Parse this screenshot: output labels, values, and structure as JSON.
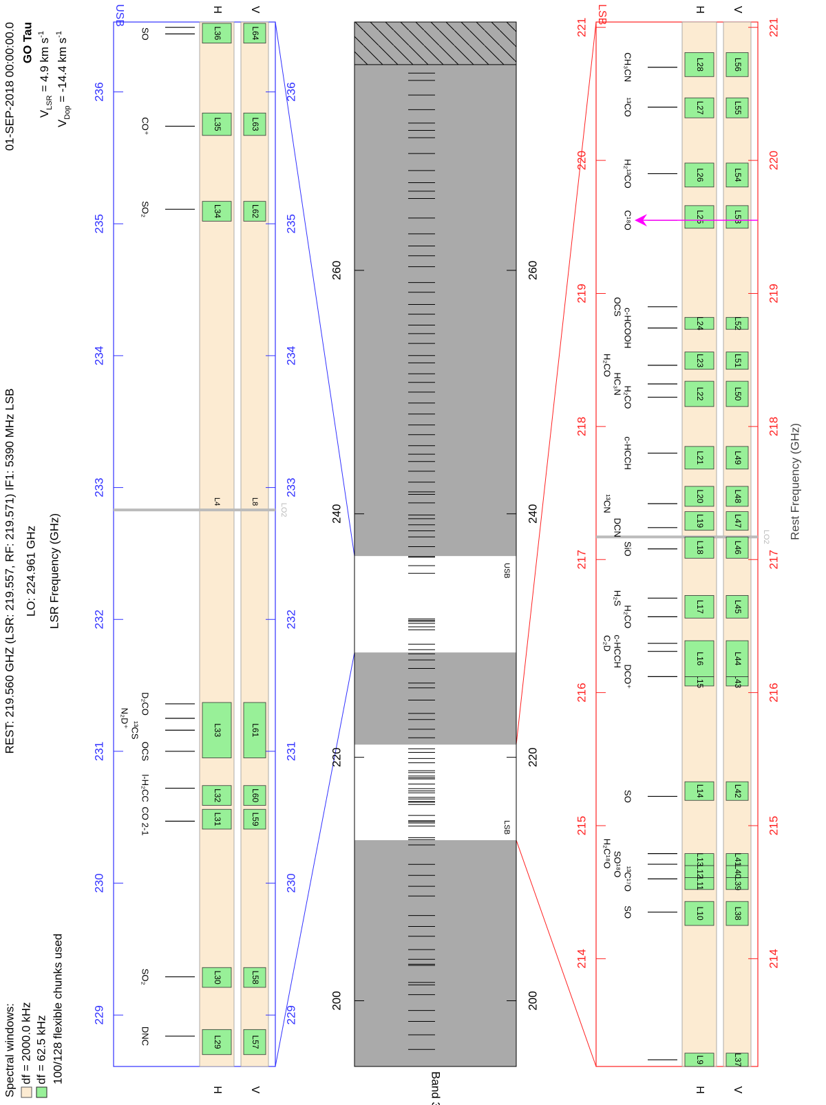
{
  "header": {
    "rest": "REST:  219.560 GHZ (LSR:  219.557, RF:  219.571) IF1: 5390 MHz LSB",
    "lo": "LO: 224.961 GHz",
    "date": "01-SEP-2018 00:00:00.0",
    "source": "GO Tau",
    "vlsr": {
      "symbol": "V",
      "sub": "LSR",
      "text": " = 4.9 km s",
      "sup": "-1"
    },
    "vdop": {
      "symbol": "V",
      "sub": "Dop",
      "text": " = -14.4 km s",
      "sup": "-1"
    }
  },
  "legend": {
    "title": "Spectral windows:",
    "wide": "df = 2000.0 kHz",
    "narrow": "df = 62.5 kHz",
    "chunks": "100/128 flexible chunks used"
  },
  "chart_data": [
    {
      "type": "spectrum",
      "sideband": "USB",
      "color": "#3030ff",
      "xlabel": "LSR Frequency (GHz)",
      "xlim": [
        228.61,
        236.53
      ],
      "xticks": [
        229,
        230,
        231,
        232,
        233,
        234,
        235,
        236
      ],
      "lo2": 232.83,
      "lo2_label": "LO2",
      "row_labels": [
        "H",
        "V"
      ],
      "wide_windows": [
        "L4",
        "L8"
      ],
      "lines": [
        {
          "label": "DNC",
          "freq": 228.84
        },
        {
          "label": "SO₂",
          "freq": 229.29
        },
        {
          "label": "CO 2-1",
          "freq": 230.47
        },
        {
          "label": "l-H₂CC",
          "freq": 230.72
        },
        {
          "label": "OCS",
          "freq": 231.0
        },
        {
          "label": "¹³CS",
          "freq": 231.16
        },
        {
          "label": "N₂D⁺",
          "freq": 231.25
        },
        {
          "label": "D₂CO",
          "freq": 231.36
        },
        {
          "label": "SO₂",
          "freq": 235.11
        },
        {
          "label": "CO⁺",
          "freq": 235.74
        },
        {
          "label": "SO",
          "freq": 236.44
        },
        {
          "freq": 236.49
        }
      ],
      "chunks": [
        {
          "h": "L29",
          "v": "L57",
          "lo": 228.7,
          "hi": 228.89
        },
        {
          "h": "L30",
          "v": "L58",
          "lo": 229.21,
          "hi": 229.36
        },
        {
          "h": "L31",
          "v": "L59",
          "lo": 230.41,
          "hi": 230.56
        },
        {
          "h": "L32",
          "v": "L60",
          "lo": 230.59,
          "hi": 230.74
        },
        {
          "h": "L33",
          "v": "L61",
          "lo": 230.95,
          "hi": 231.37
        },
        {
          "h": "L34",
          "v": "L62",
          "lo": 235.02,
          "hi": 235.17
        },
        {
          "h": "L35",
          "v": "L63",
          "lo": 235.67,
          "hi": 235.84
        },
        {
          "h": "L36",
          "v": "L64",
          "lo": 236.37,
          "hi": 236.52
        }
      ]
    },
    {
      "type": "overview",
      "label": "Band 3",
      "color": "#000000",
      "xlim": [
        194.6,
        280.4
      ],
      "xticks": [
        200,
        220,
        240,
        260
      ],
      "unavailable": [
        276.9,
        280.4
      ],
      "lines": [
        196.0,
        197.2,
        198.3,
        199.2,
        200.5,
        201.3,
        201.5,
        202.9,
        203.0,
        203.4,
        204.2,
        205.3,
        206.1,
        207.0,
        208.6,
        209.4,
        210.3,
        211.2,
        212.8,
        213.4,
        221.6,
        222.3,
        223.1,
        223.6,
        224.7,
        225.7,
        226.1,
        227.3,
        228.0,
        228.5,
        237.3,
        238.1,
        238.6,
        239.1,
        239.6,
        239.9,
        240.9,
        241.6,
        241.8,
        242.6,
        243.5,
        244.3,
        244.9,
        245.6,
        246.5,
        247.3,
        248.2,
        249.1,
        250.0,
        250.8,
        251.5,
        252.4,
        253.0,
        254.0,
        254.8,
        255.5,
        256.4,
        257.2,
        258.2,
        259.0,
        260.3,
        261.2,
        262.0,
        263.0,
        264.3,
        265.9,
        266.5,
        267.2,
        268.2,
        269.6,
        270.9,
        271.5,
        272.1,
        273.2,
        274.4,
        275.6,
        276.2
      ]
    },
    {
      "type": "spectrum",
      "sideband": "LSB",
      "color": "#ff2020",
      "xlabel": "Rest Frequency (GHz)",
      "xlim": [
        213.19,
        221.04
      ],
      "xticks": [
        214,
        215,
        216,
        217,
        218,
        219,
        220,
        221
      ],
      "lo2": 217.17,
      "lo2_label": "LO2",
      "row_labels": [
        "H",
        "V"
      ],
      "lines": [
        {
          "freq": 213.24
        },
        {
          "label": "SO",
          "freq": 214.35
        },
        {
          "label": "¹³C¹⁷O",
          "freq": 214.6
        },
        {
          "label": "SO¹⁸O",
          "freq": 214.71
        },
        {
          "label": "H₂C¹⁸O",
          "freq": 214.79
        },
        {
          "label": "SO",
          "freq": 215.22
        },
        {
          "label": "DCO⁺",
          "freq": 216.12
        },
        {
          "label": "c-HCCH",
          "freq": 216.31
        },
        {
          "label": "C₂D",
          "freq": 216.37
        },
        {
          "label": "H₂CO",
          "freq": 216.57
        },
        {
          "label": "H₂S",
          "freq": 216.71
        },
        {
          "label": "SiO",
          "freq": 217.08
        },
        {
          "label": "DCN",
          "freq": 217.24
        },
        {
          "label": "¹³CN",
          "freq": 217.42
        },
        {
          "label": "c-HCCH",
          "freq": 217.8
        },
        {
          "label": "H₂CO",
          "freq": 218.22
        },
        {
          "label": "HC₃N",
          "freq": 218.32
        },
        {
          "label": "H₂CO",
          "freq": 218.46
        },
        {
          "label": "c-HCOOH",
          "freq": 218.74
        },
        {
          "label": "OCS",
          "freq": 218.9
        },
        {
          "label": "C¹⁸O",
          "freq": 219.55,
          "highlight": true
        },
        {
          "label": "H₂¹³CO",
          "freq": 219.9
        },
        {
          "label": "¹³CO",
          "freq": 220.4
        },
        {
          "label": "CH₃CN",
          "freq": 220.7
        }
      ],
      "chunks": [
        {
          "h": "L9",
          "v": "L37",
          "lo": 213.19,
          "hi": 213.29
        },
        {
          "h": "L10",
          "v": "L38",
          "lo": 214.25,
          "hi": 214.43
        },
        {
          "h": "L11",
          "v": "L39",
          "lo": 214.52,
          "hi": 214.61
        },
        {
          "h": "L12",
          "v": "L40",
          "lo": 214.61,
          "hi": 214.7
        },
        {
          "h": "L13",
          "v": "L41",
          "lo": 214.7,
          "hi": 214.79
        },
        {
          "h": "L14",
          "v": "L42",
          "lo": 215.19,
          "hi": 215.33
        },
        {
          "h": "L15",
          "v": "L43",
          "lo": 216.05,
          "hi": 216.12
        },
        {
          "h": "L16",
          "v": "L44",
          "lo": 216.12,
          "hi": 216.39
        },
        {
          "h": "L17",
          "v": "L45",
          "lo": 216.56,
          "hi": 216.73
        },
        {
          "h": "L18",
          "v": "L46",
          "lo": 217.01,
          "hi": 217.17
        },
        {
          "h": "L19",
          "v": "L47",
          "lo": 217.22,
          "hi": 217.36
        },
        {
          "h": "L20",
          "v": "L48",
          "lo": 217.4,
          "hi": 217.55
        },
        {
          "h": "L21",
          "v": "L49",
          "lo": 217.68,
          "hi": 217.85
        },
        {
          "h": "L22",
          "v": "L50",
          "lo": 218.15,
          "hi": 218.34
        },
        {
          "h": "L23",
          "v": "L51",
          "lo": 218.43,
          "hi": 218.56
        },
        {
          "h": "L24",
          "v": "L52",
          "lo": 218.73,
          "hi": 218.82
        },
        {
          "h": "L25",
          "v": "L53",
          "lo": 219.49,
          "hi": 219.66
        },
        {
          "h": "L26",
          "v": "L54",
          "lo": 219.8,
          "hi": 219.98
        },
        {
          "h": "L27",
          "v": "L55",
          "lo": 220.32,
          "hi": 220.47
        },
        {
          "h": "L28",
          "v": "L56",
          "lo": 220.63,
          "hi": 220.81
        }
      ]
    }
  ]
}
